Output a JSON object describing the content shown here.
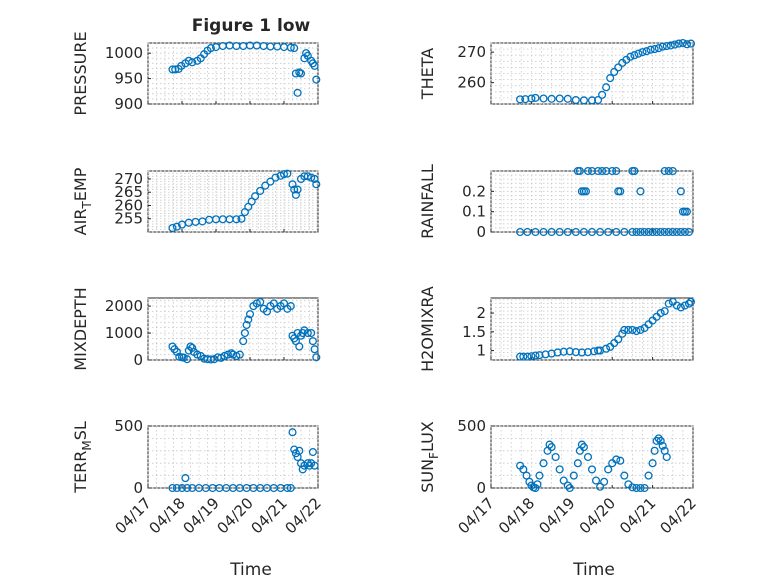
{
  "figure": {
    "title": "Figure 1 low",
    "xlabel": "Time",
    "xticklabels": [
      "04/17",
      "04/18",
      "04/19",
      "04/20",
      "04/21",
      "04/22"
    ],
    "marker_color": "#0072BD"
  },
  "chart_data": [
    {
      "type": "scatter",
      "id": "pressure",
      "ylabel": "PRESSURE",
      "xlim": [
        0,
        5
      ],
      "ylim": [
        900,
        1020
      ],
      "yticks": [
        900,
        950,
        1000
      ],
      "yticklabels": [
        "900",
        "950",
        "1000"
      ],
      "points": [
        [
          0.72,
          968
        ],
        [
          0.8,
          968
        ],
        [
          0.9,
          969
        ],
        [
          0.98,
          975
        ],
        [
          1.1,
          980
        ],
        [
          1.2,
          985
        ],
        [
          1.3,
          982
        ],
        [
          1.45,
          985
        ],
        [
          1.55,
          990
        ],
        [
          1.65,
          998
        ],
        [
          1.75,
          1005
        ],
        [
          1.85,
          1010
        ],
        [
          2.0,
          1012
        ],
        [
          2.2,
          1014
        ],
        [
          2.4,
          1015
        ],
        [
          2.6,
          1014
        ],
        [
          2.8,
          1014
        ],
        [
          3.0,
          1015
        ],
        [
          3.2,
          1015
        ],
        [
          3.4,
          1014
        ],
        [
          3.6,
          1013
        ],
        [
          3.8,
          1013
        ],
        [
          4.0,
          1012
        ],
        [
          4.2,
          1011
        ],
        [
          4.3,
          1010
        ],
        [
          4.35,
          960
        ],
        [
          4.4,
          922
        ],
        [
          4.45,
          962
        ],
        [
          4.5,
          960
        ],
        [
          4.6,
          990
        ],
        [
          4.65,
          1000
        ],
        [
          4.7,
          995
        ],
        [
          4.8,
          985
        ],
        [
          4.85,
          980
        ],
        [
          4.9,
          975
        ],
        [
          4.95,
          948
        ]
      ]
    },
    {
      "type": "scatter",
      "id": "theta",
      "ylabel": "THETA",
      "xlim": [
        0,
        5
      ],
      "ylim": [
        253,
        273
      ],
      "yticks": [
        260,
        270
      ],
      "yticklabels": [
        "260",
        "270"
      ],
      "points": [
        [
          0.72,
          254.5
        ],
        [
          0.85,
          254.6
        ],
        [
          1.0,
          254.8
        ],
        [
          1.1,
          255.0
        ],
        [
          1.3,
          254.8
        ],
        [
          1.5,
          254.7
        ],
        [
          1.7,
          254.8
        ],
        [
          1.9,
          254.7
        ],
        [
          2.1,
          254.3
        ],
        [
          2.3,
          254.2
        ],
        [
          2.5,
          254.2
        ],
        [
          2.65,
          254.3
        ],
        [
          2.75,
          256
        ],
        [
          2.85,
          258.5
        ],
        [
          2.95,
          261.5
        ],
        [
          3.05,
          263.5
        ],
        [
          3.15,
          265
        ],
        [
          3.25,
          266.5
        ],
        [
          3.35,
          267.5
        ],
        [
          3.45,
          268.5
        ],
        [
          3.55,
          269
        ],
        [
          3.65,
          269.5
        ],
        [
          3.75,
          270
        ],
        [
          3.85,
          270.3
        ],
        [
          3.95,
          270.8
        ],
        [
          4.05,
          271
        ],
        [
          4.15,
          271.3
        ],
        [
          4.25,
          271.8
        ],
        [
          4.35,
          272
        ],
        [
          4.45,
          272.2
        ],
        [
          4.55,
          272.5
        ],
        [
          4.65,
          272.8
        ],
        [
          4.75,
          273
        ],
        [
          4.85,
          272.6
        ],
        [
          4.95,
          272.8
        ]
      ]
    },
    {
      "type": "scatter",
      "id": "air_temp",
      "ylabel": "AIR",
      "ylabel_sub": "T",
      "ylabel_tail": "EMP",
      "xlim": [
        0,
        5
      ],
      "ylim": [
        250,
        273
      ],
      "yticks": [
        255,
        260,
        265,
        270
      ],
      "yticklabels": [
        "255",
        "260",
        "265",
        "270"
      ],
      "points": [
        [
          0.72,
          251.5
        ],
        [
          0.85,
          252
        ],
        [
          1.0,
          252.8
        ],
        [
          1.2,
          253.5
        ],
        [
          1.4,
          253.8
        ],
        [
          1.6,
          254
        ],
        [
          1.8,
          254.6
        ],
        [
          2.0,
          254.8
        ],
        [
          2.2,
          254.8
        ],
        [
          2.4,
          254.8
        ],
        [
          2.6,
          254.8
        ],
        [
          2.75,
          255
        ],
        [
          2.85,
          257.5
        ],
        [
          2.95,
          259.5
        ],
        [
          3.05,
          261.5
        ],
        [
          3.15,
          263.5
        ],
        [
          3.3,
          265.5
        ],
        [
          3.45,
          267.5
        ],
        [
          3.6,
          269
        ],
        [
          3.75,
          270.5
        ],
        [
          3.9,
          271.2
        ],
        [
          4.0,
          271.8
        ],
        [
          4.1,
          272
        ],
        [
          4.25,
          268
        ],
        [
          4.3,
          266
        ],
        [
          4.35,
          264
        ],
        [
          4.4,
          266
        ],
        [
          4.5,
          270
        ],
        [
          4.6,
          271
        ],
        [
          4.7,
          271
        ],
        [
          4.8,
          270.5
        ],
        [
          4.9,
          270
        ],
        [
          4.95,
          268
        ]
      ]
    },
    {
      "type": "scatter",
      "id": "rainfall",
      "ylabel": "RAINFALL",
      "xlim": [
        0,
        5
      ],
      "ylim": [
        0,
        0.3
      ],
      "yticks": [
        0,
        0.1,
        0.2
      ],
      "yticklabels": [
        "0",
        "0.1",
        "0.2"
      ],
      "points": [
        [
          0.72,
          0
        ],
        [
          0.9,
          0
        ],
        [
          1.1,
          0
        ],
        [
          1.3,
          0
        ],
        [
          1.5,
          0
        ],
        [
          1.7,
          0
        ],
        [
          1.9,
          0
        ],
        [
          2.1,
          0
        ],
        [
          2.3,
          0
        ],
        [
          2.5,
          0
        ],
        [
          2.7,
          0
        ],
        [
          2.9,
          0
        ],
        [
          3.1,
          0
        ],
        [
          3.3,
          0
        ],
        [
          3.5,
          0
        ],
        [
          3.6,
          0
        ],
        [
          3.7,
          0
        ],
        [
          3.8,
          0
        ],
        [
          3.9,
          0
        ],
        [
          4.0,
          0
        ],
        [
          4.1,
          0
        ],
        [
          4.2,
          0
        ],
        [
          4.3,
          0
        ],
        [
          4.4,
          0
        ],
        [
          4.5,
          0
        ],
        [
          4.6,
          0
        ],
        [
          4.7,
          0
        ],
        [
          4.8,
          0
        ],
        [
          4.9,
          0
        ],
        [
          2.15,
          0.3
        ],
        [
          2.2,
          0.3
        ],
        [
          2.25,
          0.2
        ],
        [
          2.3,
          0.2
        ],
        [
          2.35,
          0.2
        ],
        [
          2.4,
          0.3
        ],
        [
          2.5,
          0.3
        ],
        [
          2.65,
          0.3
        ],
        [
          2.75,
          0.3
        ],
        [
          2.85,
          0.3
        ],
        [
          3.0,
          0.3
        ],
        [
          3.1,
          0.3
        ],
        [
          3.15,
          0.2
        ],
        [
          3.2,
          0.2
        ],
        [
          3.5,
          0.3
        ],
        [
          3.55,
          0.3
        ],
        [
          3.7,
          0.2
        ],
        [
          4.3,
          0.3
        ],
        [
          4.4,
          0.3
        ],
        [
          4.5,
          0.3
        ],
        [
          4.7,
          0.2
        ],
        [
          4.75,
          0.1
        ],
        [
          4.8,
          0.1
        ],
        [
          4.85,
          0.1
        ]
      ]
    },
    {
      "type": "scatter",
      "id": "mixdepth",
      "ylabel": "MIXDEPTH",
      "xlim": [
        0,
        5
      ],
      "ylim": [
        0,
        2300
      ],
      "yticks": [
        0,
        1000,
        2000
      ],
      "yticklabels": [
        "0",
        "1000",
        "2000"
      ],
      "points": [
        [
          0.72,
          500
        ],
        [
          0.78,
          400
        ],
        [
          0.85,
          300
        ],
        [
          0.92,
          120
        ],
        [
          1.0,
          100
        ],
        [
          1.05,
          90
        ],
        [
          1.15,
          30
        ],
        [
          1.2,
          350
        ],
        [
          1.25,
          500
        ],
        [
          1.3,
          450
        ],
        [
          1.35,
          300
        ],
        [
          1.45,
          200
        ],
        [
          1.55,
          150
        ],
        [
          1.65,
          50
        ],
        [
          1.75,
          30
        ],
        [
          1.85,
          20
        ],
        [
          1.95,
          30
        ],
        [
          2.05,
          100
        ],
        [
          2.15,
          80
        ],
        [
          2.25,
          150
        ],
        [
          2.35,
          200
        ],
        [
          2.45,
          250
        ],
        [
          2.5,
          200
        ],
        [
          2.6,
          150
        ],
        [
          2.7,
          200
        ],
        [
          2.8,
          700
        ],
        [
          2.85,
          1000
        ],
        [
          2.9,
          1300
        ],
        [
          2.95,
          1500
        ],
        [
          3.0,
          1700
        ],
        [
          3.1,
          2000
        ],
        [
          3.2,
          2100
        ],
        [
          3.3,
          2150
        ],
        [
          3.4,
          1900
        ],
        [
          3.5,
          1800
        ],
        [
          3.6,
          2000
        ],
        [
          3.7,
          2100
        ],
        [
          3.8,
          1900
        ],
        [
          3.9,
          2000
        ],
        [
          4.0,
          2100
        ],
        [
          4.1,
          1900
        ],
        [
          4.2,
          2000
        ],
        [
          4.25,
          900
        ],
        [
          4.3,
          800
        ],
        [
          4.35,
          700
        ],
        [
          4.4,
          1000
        ],
        [
          4.45,
          500
        ],
        [
          4.5,
          900
        ],
        [
          4.55,
          1000
        ],
        [
          4.6,
          1100
        ],
        [
          4.7,
          1000
        ],
        [
          4.8,
          1000
        ],
        [
          4.85,
          700
        ],
        [
          4.9,
          400
        ],
        [
          4.95,
          100
        ]
      ]
    },
    {
      "type": "scatter",
      "id": "h2omixra",
      "ylabel": "H2OMIXRA",
      "xlim": [
        0,
        5
      ],
      "ylim": [
        0.75,
        2.4
      ],
      "yticks": [
        1,
        1.5,
        2
      ],
      "yticklabels": [
        "1",
        "1.5",
        "2"
      ],
      "points": [
        [
          0.72,
          0.84
        ],
        [
          0.8,
          0.84
        ],
        [
          0.9,
          0.84
        ],
        [
          1.0,
          0.85
        ],
        [
          1.1,
          0.87
        ],
        [
          1.2,
          0.88
        ],
        [
          1.35,
          0.9
        ],
        [
          1.5,
          0.92
        ],
        [
          1.65,
          0.95
        ],
        [
          1.8,
          0.97
        ],
        [
          1.95,
          0.98
        ],
        [
          2.1,
          0.96
        ],
        [
          2.25,
          0.95
        ],
        [
          2.4,
          0.96
        ],
        [
          2.55,
          0.98
        ],
        [
          2.65,
          1.0
        ],
        [
          2.7,
          1.0
        ],
        [
          2.85,
          1.05
        ],
        [
          2.95,
          1.1
        ],
        [
          3.05,
          1.2
        ],
        [
          3.15,
          1.3
        ],
        [
          3.25,
          1.45
        ],
        [
          3.3,
          1.55
        ],
        [
          3.4,
          1.55
        ],
        [
          3.5,
          1.55
        ],
        [
          3.6,
          1.52
        ],
        [
          3.7,
          1.55
        ],
        [
          3.8,
          1.6
        ],
        [
          3.9,
          1.7
        ],
        [
          4.0,
          1.8
        ],
        [
          4.1,
          1.9
        ],
        [
          4.2,
          2.0
        ],
        [
          4.3,
          2.05
        ],
        [
          4.4,
          2.25
        ],
        [
          4.5,
          2.3
        ],
        [
          4.6,
          2.2
        ],
        [
          4.7,
          2.15
        ],
        [
          4.8,
          2.2
        ],
        [
          4.9,
          2.25
        ],
        [
          4.95,
          2.3
        ]
      ]
    },
    {
      "type": "scatter",
      "id": "terr_msl",
      "ylabel": "TERR",
      "ylabel_sub": "M",
      "ylabel_tail": "SL",
      "xlim": [
        0,
        5
      ],
      "ylim": [
        0,
        500
      ],
      "yticks": [
        0,
        500
      ],
      "yticklabels": [
        "0",
        "500"
      ],
      "points": [
        [
          0.72,
          0
        ],
        [
          0.85,
          0
        ],
        [
          1.0,
          0
        ],
        [
          1.1,
          80
        ],
        [
          1.15,
          0
        ],
        [
          1.3,
          0
        ],
        [
          1.5,
          0
        ],
        [
          1.7,
          0
        ],
        [
          1.9,
          0
        ],
        [
          2.1,
          0
        ],
        [
          2.3,
          0
        ],
        [
          2.5,
          0
        ],
        [
          2.7,
          0
        ],
        [
          2.9,
          0
        ],
        [
          3.1,
          0
        ],
        [
          3.3,
          0
        ],
        [
          3.5,
          0
        ],
        [
          3.7,
          0
        ],
        [
          3.9,
          0
        ],
        [
          4.1,
          0
        ],
        [
          4.2,
          0
        ],
        [
          4.25,
          450
        ],
        [
          4.3,
          310
        ],
        [
          4.35,
          280
        ],
        [
          4.4,
          250
        ],
        [
          4.45,
          300
        ],
        [
          4.5,
          200
        ],
        [
          4.55,
          150
        ],
        [
          4.6,
          180
        ],
        [
          4.7,
          200
        ],
        [
          4.75,
          180
        ],
        [
          4.8,
          200
        ],
        [
          4.85,
          290
        ],
        [
          4.9,
          180
        ]
      ]
    },
    {
      "type": "scatter",
      "id": "sun_flux",
      "ylabel": "SUN",
      "ylabel_sub": "F",
      "ylabel_tail": "LUX",
      "xlim": [
        0,
        5
      ],
      "ylim": [
        0,
        500
      ],
      "yticks": [
        0,
        500
      ],
      "yticklabels": [
        "0",
        "500"
      ],
      "points": [
        [
          0.72,
          180
        ],
        [
          0.8,
          150
        ],
        [
          0.88,
          100
        ],
        [
          0.95,
          50
        ],
        [
          1.0,
          20
        ],
        [
          1.05,
          5
        ],
        [
          1.1,
          0
        ],
        [
          1.15,
          30
        ],
        [
          1.2,
          100
        ],
        [
          1.3,
          200
        ],
        [
          1.4,
          300
        ],
        [
          1.45,
          350
        ],
        [
          1.5,
          330
        ],
        [
          1.6,
          250
        ],
        [
          1.7,
          150
        ],
        [
          1.8,
          60
        ],
        [
          1.9,
          20
        ],
        [
          1.95,
          0
        ],
        [
          2.05,
          100
        ],
        [
          2.15,
          200
        ],
        [
          2.2,
          300
        ],
        [
          2.25,
          350
        ],
        [
          2.3,
          330
        ],
        [
          2.4,
          250
        ],
        [
          2.5,
          150
        ],
        [
          2.6,
          60
        ],
        [
          2.7,
          10
        ],
        [
          2.8,
          50
        ],
        [
          2.9,
          150
        ],
        [
          3.0,
          200
        ],
        [
          3.1,
          230
        ],
        [
          3.2,
          220
        ],
        [
          3.3,
          100
        ],
        [
          3.4,
          30
        ],
        [
          3.5,
          5
        ],
        [
          3.6,
          0
        ],
        [
          3.7,
          0
        ],
        [
          3.8,
          0
        ],
        [
          3.9,
          100
        ],
        [
          4.0,
          200
        ],
        [
          4.05,
          300
        ],
        [
          4.1,
          380
        ],
        [
          4.15,
          400
        ],
        [
          4.2,
          380
        ],
        [
          4.25,
          340
        ],
        [
          4.3,
          300
        ],
        [
          4.35,
          250
        ]
      ]
    }
  ]
}
